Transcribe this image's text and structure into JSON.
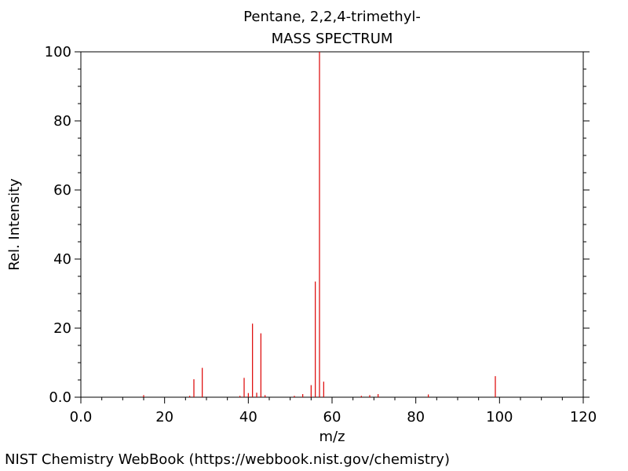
{
  "chart_data": {
    "type": "bar",
    "title": "Pentane, 2,2,4-trimethyl-",
    "subtitle": "MASS SPECTRUM",
    "xlabel": "m/z",
    "ylabel": "Rel. Intensity",
    "xlim": [
      0,
      120
    ],
    "ylim": [
      0,
      100
    ],
    "x_ticks": [
      "0.0",
      "20",
      "40",
      "60",
      "80",
      "100",
      "120"
    ],
    "y_ticks": [
      "0.0",
      "20",
      "40",
      "60",
      "80",
      "100"
    ],
    "grid": false,
    "bar_color": "#dd0000",
    "peaks": [
      {
        "x": 15,
        "y": 0.6
      },
      {
        "x": 26,
        "y": 0.4
      },
      {
        "x": 27,
        "y": 5.2
      },
      {
        "x": 29,
        "y": 8.5
      },
      {
        "x": 38,
        "y": 0.4
      },
      {
        "x": 39,
        "y": 5.6
      },
      {
        "x": 40,
        "y": 1.2
      },
      {
        "x": 41,
        "y": 21.3
      },
      {
        "x": 42,
        "y": 1.3
      },
      {
        "x": 43,
        "y": 18.5
      },
      {
        "x": 44,
        "y": 0.6
      },
      {
        "x": 51,
        "y": 0.4
      },
      {
        "x": 53,
        "y": 0.9
      },
      {
        "x": 55,
        "y": 3.5
      },
      {
        "x": 56,
        "y": 33.5
      },
      {
        "x": 57,
        "y": 100
      },
      {
        "x": 58,
        "y": 4.5
      },
      {
        "x": 67,
        "y": 0.4
      },
      {
        "x": 69,
        "y": 0.6
      },
      {
        "x": 71,
        "y": 0.9
      },
      {
        "x": 83,
        "y": 0.8
      },
      {
        "x": 99,
        "y": 6.1
      }
    ]
  },
  "footer": "NIST Chemistry WebBook (https://webbook.nist.gov/chemistry)"
}
